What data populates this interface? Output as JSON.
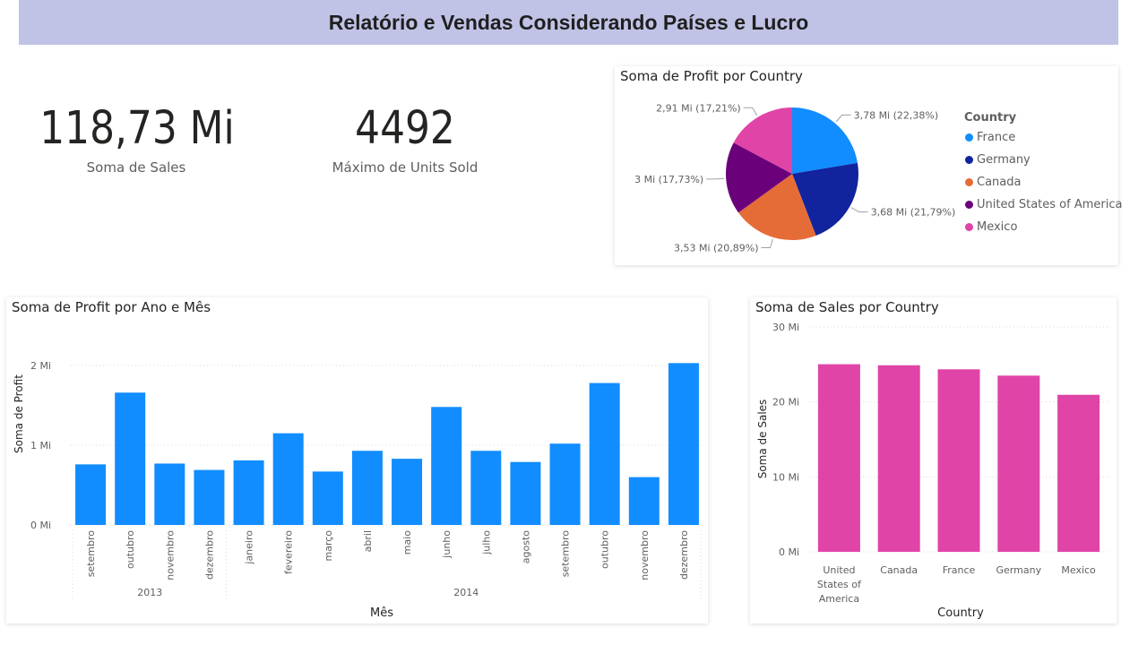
{
  "header": {
    "title": "Relatório e Vendas Considerando Países e Lucro"
  },
  "kpis": [
    {
      "value": "118,73 Mi",
      "label": "Soma de Sales"
    },
    {
      "value": "4492",
      "label": "Máximo de Units Sold"
    }
  ],
  "colors": {
    "header_bg": "#c0c3e6",
    "bar_blue": "#118dff",
    "bar_pink": "#e044a7"
  },
  "pie_chart": {
    "title": "Soma de Profit por Country",
    "legend_title": "Country",
    "legend": [
      {
        "name": "France",
        "color": "#118dff"
      },
      {
        "name": "Germany",
        "color": "#12239e"
      },
      {
        "name": "Canada",
        "color": "#e66c37"
      },
      {
        "name": "United States of America",
        "color": "#6b007b"
      },
      {
        "name": "Mexico",
        "color": "#e044a7"
      }
    ]
  },
  "chart_data": [
    {
      "type": "pie",
      "title": "Soma de Profit por Country",
      "legend_title": "Country",
      "legend_position": "right",
      "slices": [
        {
          "name": "France",
          "value": 3.78,
          "percent": 22.38,
          "label": "3,78 Mi (22,38%)",
          "color": "#118dff"
        },
        {
          "name": "Germany",
          "value": 3.68,
          "percent": 21.79,
          "label": "3,68 Mi (21,79%)",
          "color": "#12239e"
        },
        {
          "name": "Canada",
          "value": 3.53,
          "percent": 20.89,
          "label": "3,53 Mi (20,89%)",
          "color": "#e66c37"
        },
        {
          "name": "United States of America",
          "value": 3.0,
          "percent": 17.73,
          "label": "3 Mi (17,73%)",
          "color": "#6b007b"
        },
        {
          "name": "Mexico",
          "value": 2.91,
          "percent": 17.21,
          "label": "2,91 Mi (17,21%)",
          "color": "#e044a7"
        }
      ]
    },
    {
      "type": "bar",
      "title": "Soma de Profit por Ano e Mês",
      "xlabel": "Mês",
      "ylabel": "Soma de Profit",
      "ylim": [
        0,
        2
      ],
      "y_unit": "Mi",
      "yticks": [
        "0 Mi",
        "1 Mi",
        "2 Mi"
      ],
      "grid": true,
      "color": "#118dff",
      "categories": [
        "setembro",
        "outubro",
        "novembro",
        "dezembro",
        "janeiro",
        "fevereiro",
        "março",
        "abril",
        "maio",
        "junho",
        "julho",
        "agosto",
        "setembro",
        "outubro",
        "novembro",
        "dezembro"
      ],
      "values": [
        0.76,
        1.66,
        0.77,
        0.69,
        0.81,
        1.15,
        0.67,
        0.93,
        0.83,
        1.48,
        0.93,
        0.79,
        1.02,
        1.78,
        0.6,
        2.03
      ],
      "groups": [
        {
          "label": "2013",
          "count": 4
        },
        {
          "label": "2014",
          "count": 12
        }
      ]
    },
    {
      "type": "bar",
      "title": "Soma de Sales por Country",
      "xlabel": "Country",
      "ylabel": "Soma de Sales",
      "ylim": [
        0,
        30
      ],
      "y_unit": "Mi",
      "yticks": [
        "0 Mi",
        "10 Mi",
        "20 Mi",
        "30 Mi"
      ],
      "grid": true,
      "color": "#e044a7",
      "categories": [
        "United States of America",
        "Canada",
        "France",
        "Germany",
        "Mexico"
      ],
      "category_lines": [
        [
          "United",
          "States of",
          "America"
        ],
        [
          "Canada"
        ],
        [
          "France"
        ],
        [
          "Germany"
        ],
        [
          "Mexico"
        ]
      ],
      "values": [
        25.03,
        24.89,
        24.35,
        23.51,
        20.95
      ]
    }
  ]
}
